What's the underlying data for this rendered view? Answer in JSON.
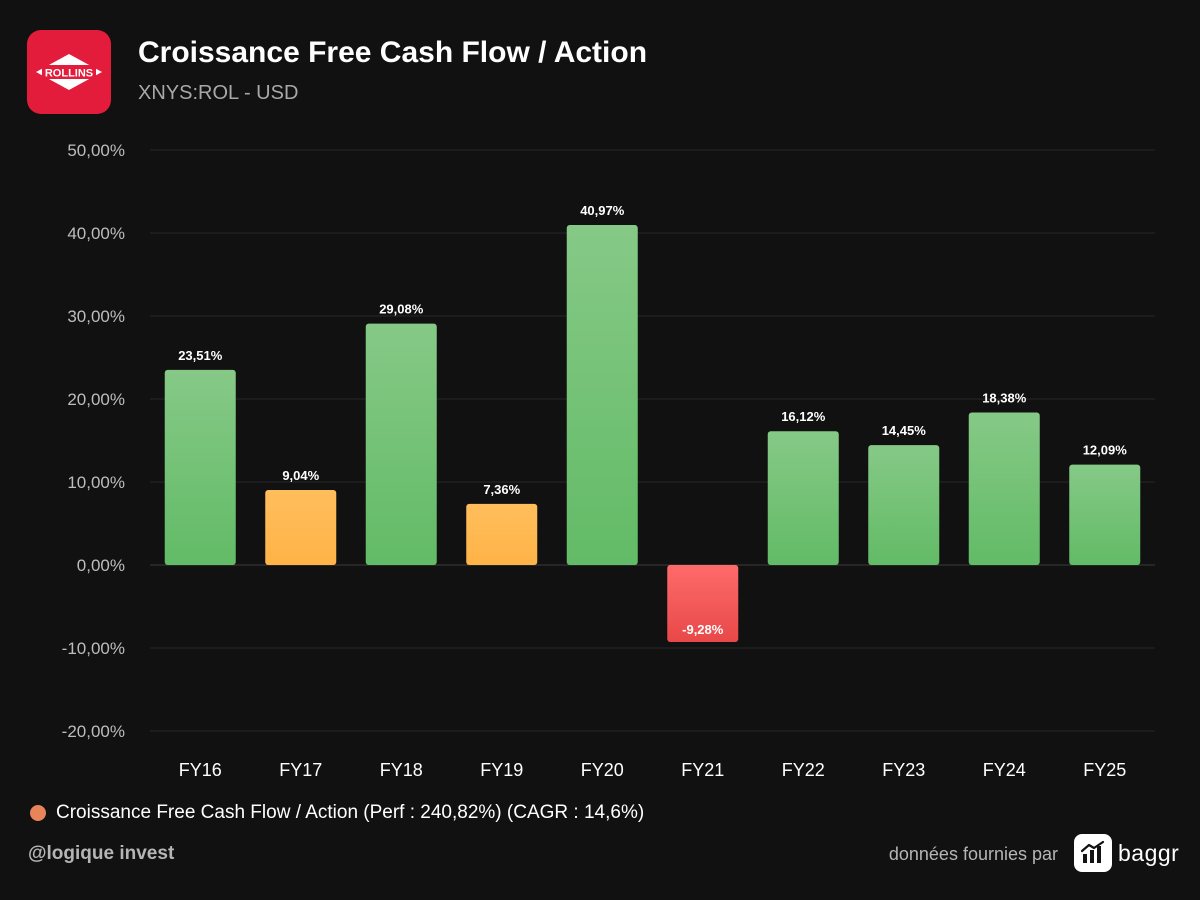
{
  "header": {
    "logo_text": "ROLLINS",
    "title": "Croissance Free Cash Flow / Action",
    "subtitle": "XNYS:ROL - USD"
  },
  "colors": {
    "positive_high": "#6cc06e",
    "positive_low": "#ffb84d",
    "negative": "#ef5350",
    "legend_dot": "#e8845a",
    "logo_bg": "#e21c3a"
  },
  "chart_data": {
    "type": "bar",
    "title": "Croissance Free Cash Flow / Action",
    "categories": [
      "FY16",
      "FY17",
      "FY18",
      "FY19",
      "FY20",
      "FY21",
      "FY22",
      "FY23",
      "FY24",
      "FY25"
    ],
    "values": [
      23.51,
      9.04,
      29.08,
      7.36,
      40.97,
      -9.28,
      16.12,
      14.45,
      18.38,
      12.09
    ],
    "value_labels": [
      "23,51%",
      "9,04%",
      "29,08%",
      "7,36%",
      "40,97%",
      "-9,28%",
      "16,12%",
      "14,45%",
      "18,38%",
      "12,09%"
    ],
    "ylim": [
      -20,
      50
    ],
    "yticks": [
      50,
      40,
      30,
      20,
      10,
      0,
      -10,
      -20
    ],
    "ytick_labels": [
      "50,00%",
      "40,00%",
      "30,00%",
      "20,00%",
      "10,00%",
      "0,00%",
      "-10,00%",
      "-20,00%"
    ],
    "grid": true,
    "legend_position": "bottom-left",
    "series": [
      {
        "name": "Croissance Free Cash Flow / Action (Perf : 240,82%) (CAGR : 14,6%)"
      }
    ]
  },
  "legend": {
    "label": "Croissance Free Cash Flow / Action (Perf : 240,82%) (CAGR : 14,6%)"
  },
  "footer": {
    "handle": "@logique invest",
    "source_text": "données fournies par",
    "brand": "baggr"
  }
}
